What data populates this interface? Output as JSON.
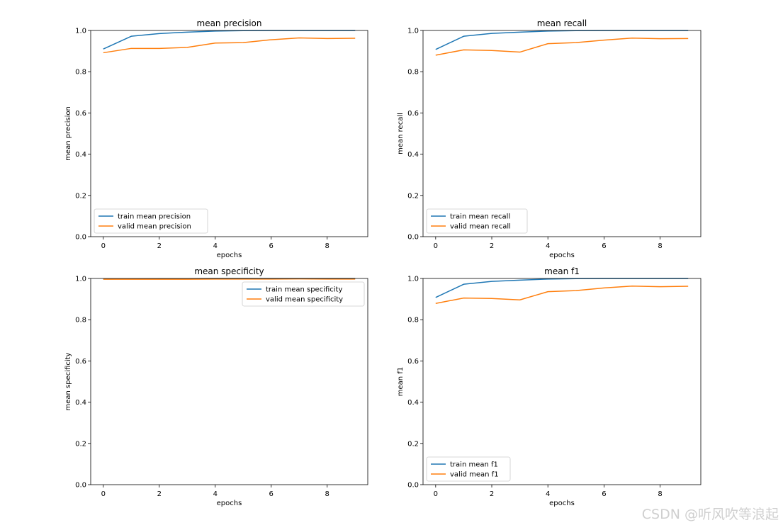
{
  "figure": {
    "watermark": "CSDN @听风吹等浪起",
    "colors": {
      "train": "#1f77b4",
      "valid": "#ff7f0e",
      "axis": "#000000",
      "legend_border": "#cccccc"
    }
  },
  "chart_data": [
    {
      "type": "line",
      "title": "mean precision",
      "xlabel": "epochs",
      "ylabel": "mean precision",
      "xlim": [
        -0.45,
        9.45
      ],
      "ylim": [
        0.0,
        1.0
      ],
      "xticks": [
        0,
        2,
        4,
        6,
        8
      ],
      "yticks": [
        0.0,
        0.2,
        0.4,
        0.6,
        0.8,
        1.0
      ],
      "legend_loc": "lower-left",
      "x": [
        0,
        1,
        2,
        3,
        4,
        5,
        6,
        7,
        8,
        9
      ],
      "series": [
        {
          "name": "train mean precision",
          "color": "#1f77b4",
          "values": [
            0.91,
            0.972,
            0.985,
            0.992,
            0.997,
            0.999,
            1.0,
            1.0,
            1.0,
            1.0
          ]
        },
        {
          "name": "valid mean precision",
          "color": "#ff7f0e",
          "values": [
            0.892,
            0.913,
            0.913,
            0.918,
            0.939,
            0.941,
            0.955,
            0.964,
            0.961,
            0.962
          ]
        }
      ]
    },
    {
      "type": "line",
      "title": "mean recall",
      "xlabel": "epochs",
      "ylabel": "mean recall",
      "xlim": [
        -0.45,
        9.45
      ],
      "ylim": [
        0.0,
        1.0
      ],
      "xticks": [
        0,
        2,
        4,
        6,
        8
      ],
      "yticks": [
        0.0,
        0.2,
        0.4,
        0.6,
        0.8,
        1.0
      ],
      "legend_loc": "lower-left",
      "x": [
        0,
        1,
        2,
        3,
        4,
        5,
        6,
        7,
        8,
        9
      ],
      "series": [
        {
          "name": "train mean recall",
          "color": "#1f77b4",
          "values": [
            0.908,
            0.972,
            0.986,
            0.992,
            0.997,
            0.999,
            1.0,
            1.0,
            1.0,
            1.0
          ]
        },
        {
          "name": "valid mean recall",
          "color": "#ff7f0e",
          "values": [
            0.88,
            0.906,
            0.903,
            0.895,
            0.936,
            0.941,
            0.953,
            0.963,
            0.96,
            0.961
          ]
        }
      ]
    },
    {
      "type": "line",
      "title": "mean specificity",
      "xlabel": "epochs",
      "ylabel": "mean specificity",
      "xlim": [
        -0.45,
        9.45
      ],
      "ylim": [
        0.0,
        1.0
      ],
      "xticks": [
        0,
        2,
        4,
        6,
        8
      ],
      "yticks": [
        0.0,
        0.2,
        0.4,
        0.6,
        0.8,
        1.0
      ],
      "legend_loc": "upper-right",
      "x": [
        0,
        1,
        2,
        3,
        4,
        5,
        6,
        7,
        8,
        9
      ],
      "series": [
        {
          "name": "train mean specificity",
          "color": "#1f77b4",
          "values": [
            0.997,
            0.998,
            0.999,
            0.999,
            1.0,
            1.0,
            1.0,
            1.0,
            1.0,
            1.0
          ]
        },
        {
          "name": "valid mean specificity",
          "color": "#ff7f0e",
          "values": [
            0.996,
            0.996,
            0.996,
            0.996,
            0.997,
            0.997,
            0.997,
            0.998,
            0.997,
            0.997
          ]
        }
      ]
    },
    {
      "type": "line",
      "title": "mean f1",
      "xlabel": "epochs",
      "ylabel": "mean f1",
      "xlim": [
        -0.45,
        9.45
      ],
      "ylim": [
        0.0,
        1.0
      ],
      "xticks": [
        0,
        2,
        4,
        6,
        8
      ],
      "yticks": [
        0.0,
        0.2,
        0.4,
        0.6,
        0.8,
        1.0
      ],
      "legend_loc": "lower-left",
      "x": [
        0,
        1,
        2,
        3,
        4,
        5,
        6,
        7,
        8,
        9
      ],
      "series": [
        {
          "name": "train mean f1",
          "color": "#1f77b4",
          "values": [
            0.908,
            0.972,
            0.986,
            0.992,
            0.997,
            0.999,
            1.0,
            1.0,
            1.0,
            1.0
          ]
        },
        {
          "name": "valid mean f1",
          "color": "#ff7f0e",
          "values": [
            0.879,
            0.905,
            0.903,
            0.896,
            0.936,
            0.941,
            0.954,
            0.963,
            0.96,
            0.962
          ]
        }
      ]
    }
  ]
}
